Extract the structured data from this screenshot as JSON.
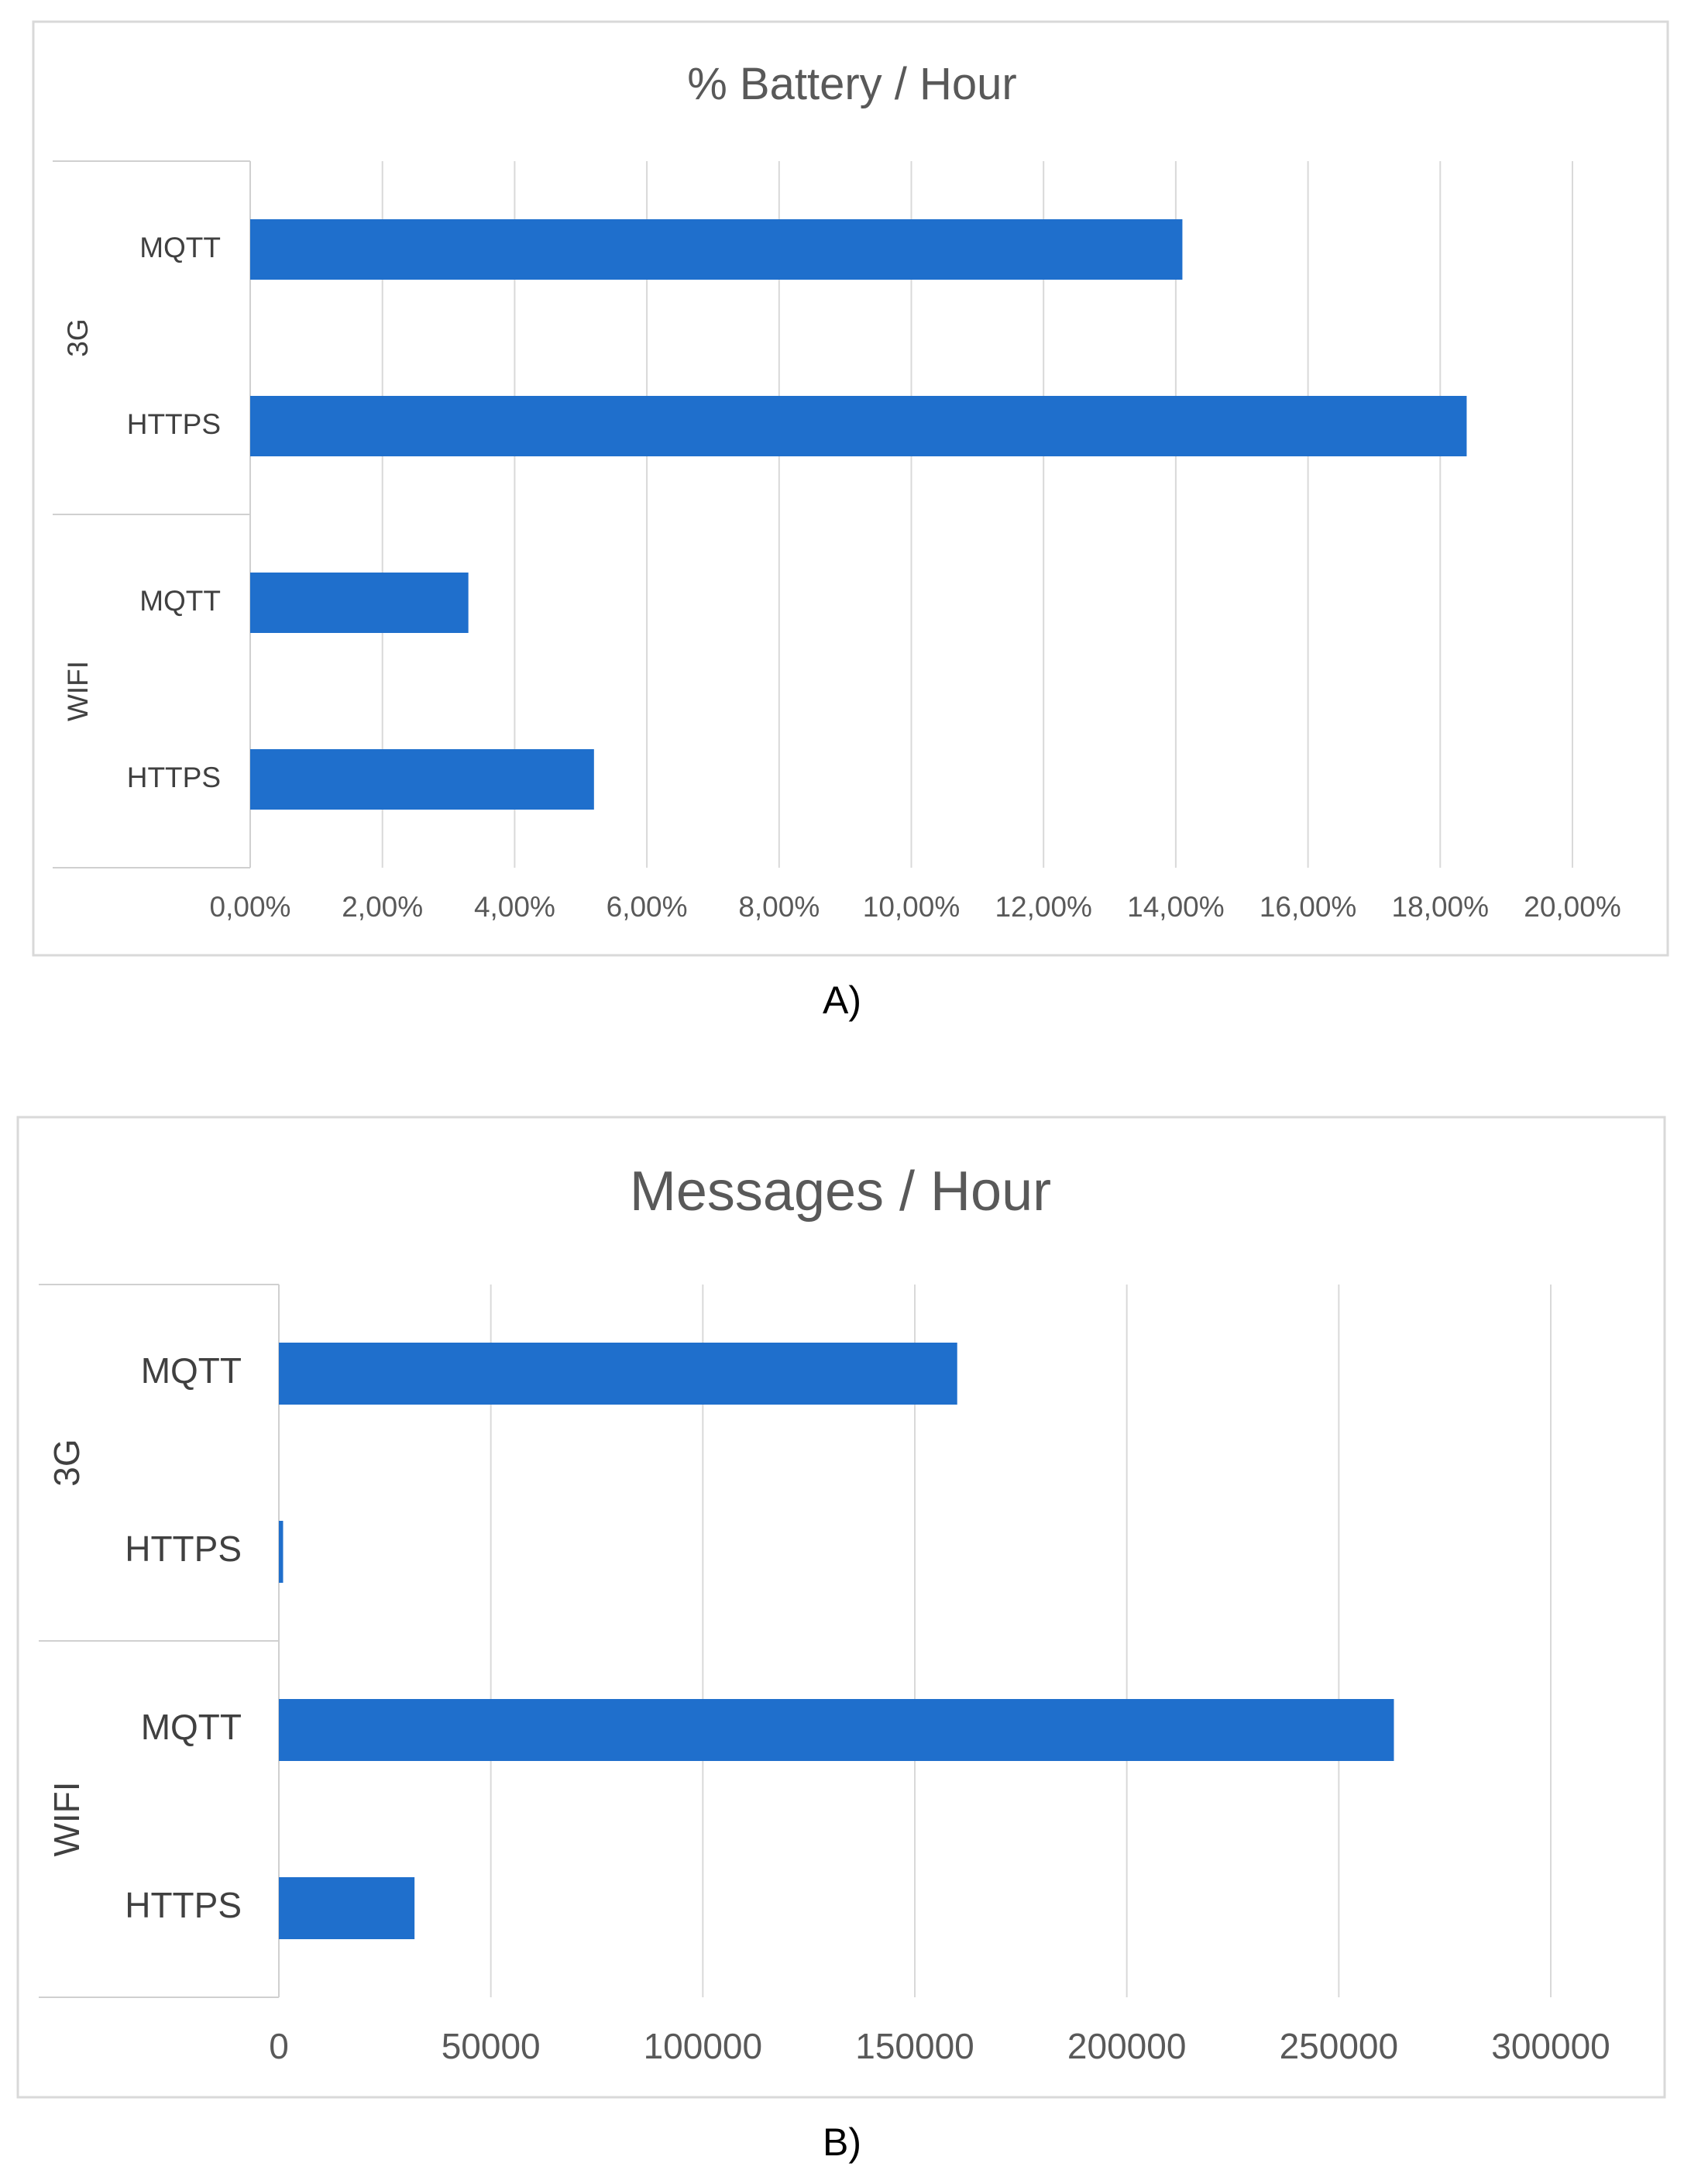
{
  "chart_data": [
    {
      "type": "bar",
      "orientation": "horizontal",
      "title": "% Battery / Hour",
      "caption": "A)",
      "groups": [
        "3G",
        "WIFI"
      ],
      "categories": [
        "MQTT",
        "HTTPS",
        "MQTT",
        "HTTPS"
      ],
      "category_groups": [
        "3G",
        "3G",
        "WIFI",
        "WIFI"
      ],
      "values": [
        0.141,
        0.184,
        0.033,
        0.052
      ],
      "xlim": [
        0,
        0.2
      ],
      "x_ticks": [
        "0,00%",
        "2,00%",
        "4,00%",
        "6,00%",
        "8,00%",
        "10,00%",
        "12,00%",
        "14,00%",
        "16,00%",
        "18,00%",
        "20,00%"
      ],
      "grid": true,
      "color": "#1f6fcc"
    },
    {
      "type": "bar",
      "orientation": "horizontal",
      "title": "Messages / Hour",
      "caption": "B)",
      "groups": [
        "3G",
        "WIFI"
      ],
      "categories": [
        "MQTT",
        "HTTPS",
        "MQTT",
        "HTTPS"
      ],
      "category_groups": [
        "3G",
        "3G",
        "WIFI",
        "WIFI"
      ],
      "values": [
        160000,
        1000,
        263000,
        32000
      ],
      "xlim": [
        0,
        300000
      ],
      "x_ticks": [
        "0",
        "50000",
        "100000",
        "150000",
        "200000",
        "250000",
        "300000"
      ],
      "grid": true,
      "color": "#1f6fcc"
    }
  ]
}
